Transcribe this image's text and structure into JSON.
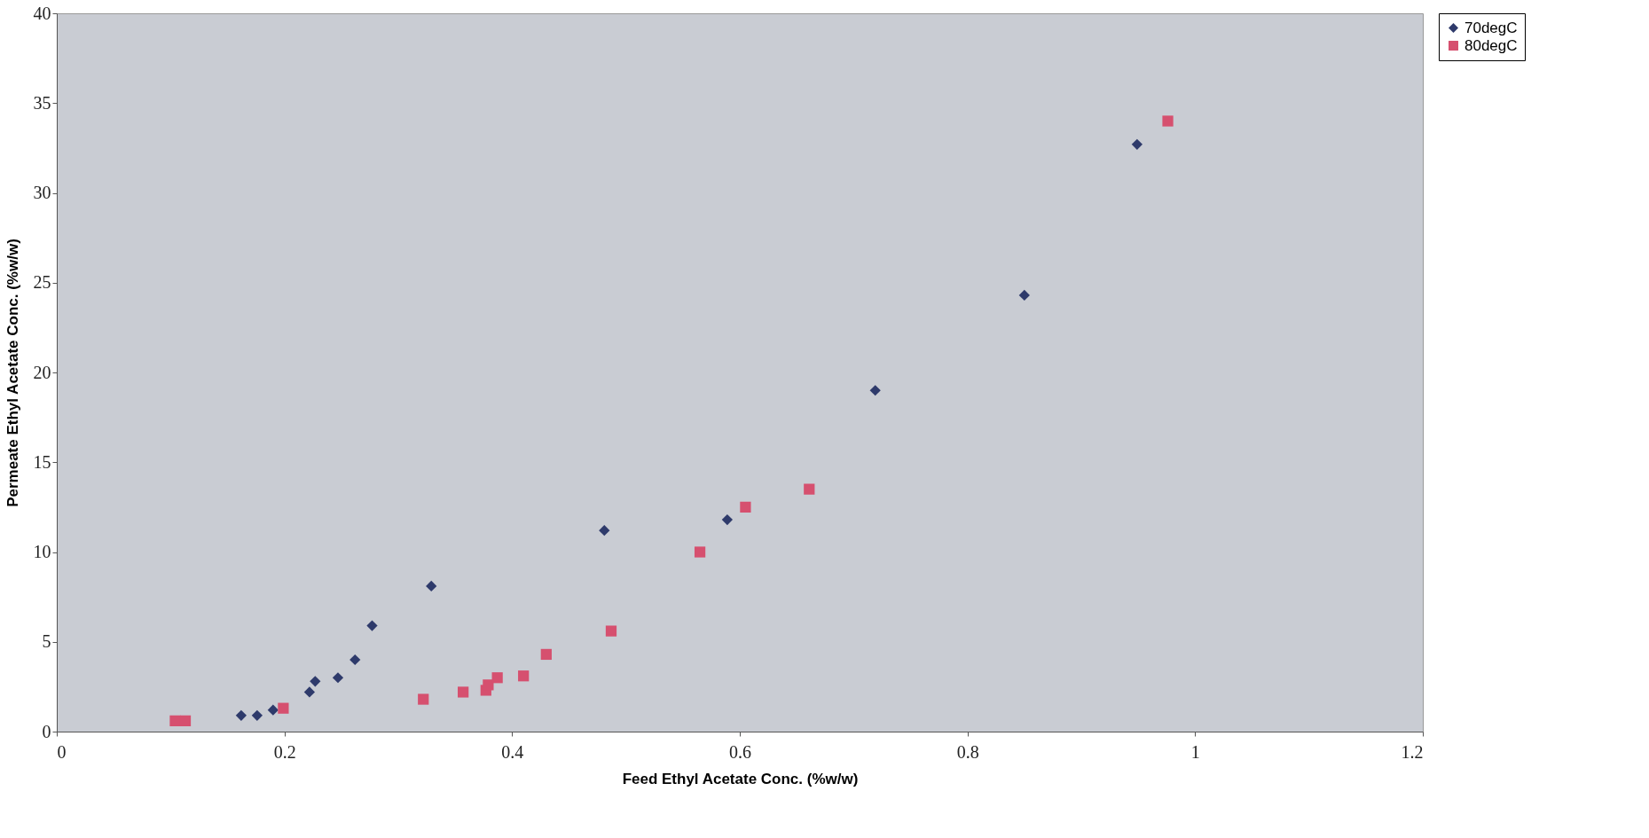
{
  "chart_data": {
    "type": "scatter",
    "xlabel": "Feed Ethyl Acetate Conc. (%w/w)",
    "ylabel": "Permeate Ethyl Acetate Conc. (%w/w)",
    "xlim": [
      0,
      1.2
    ],
    "xticks": [
      0,
      0.2,
      0.4,
      0.6,
      0.8,
      1,
      1.2
    ],
    "ylim": [
      0,
      40
    ],
    "yticks": [
      0,
      5,
      10,
      15,
      20,
      25,
      30,
      35,
      40
    ],
    "grid": false,
    "legend": "right",
    "series": [
      {
        "name": "70degC",
        "color": "#2e3a6b",
        "marker": "diamond",
        "x": [
          0.162,
          0.176,
          0.19,
          0.222,
          0.227,
          0.247,
          0.262,
          0.277,
          0.329,
          0.481,
          0.589,
          0.719,
          0.85,
          0.949
        ],
        "values": [
          0.9,
          0.9,
          1.2,
          2.2,
          2.8,
          3.0,
          4.0,
          5.9,
          8.1,
          11.2,
          11.8,
          19.0,
          24.3,
          32.7
        ]
      },
      {
        "name": "80degC",
        "color": "#d6506f",
        "marker": "square",
        "x": [
          0.104,
          0.113,
          0.199,
          0.322,
          0.357,
          0.377,
          0.379,
          0.387,
          0.41,
          0.43,
          0.487,
          0.565,
          0.605,
          0.661,
          0.976
        ],
        "values": [
          0.6,
          0.6,
          1.3,
          1.8,
          2.2,
          2.3,
          2.6,
          3.0,
          3.1,
          4.3,
          5.6,
          10.0,
          12.5,
          13.5,
          34.0
        ]
      }
    ]
  }
}
